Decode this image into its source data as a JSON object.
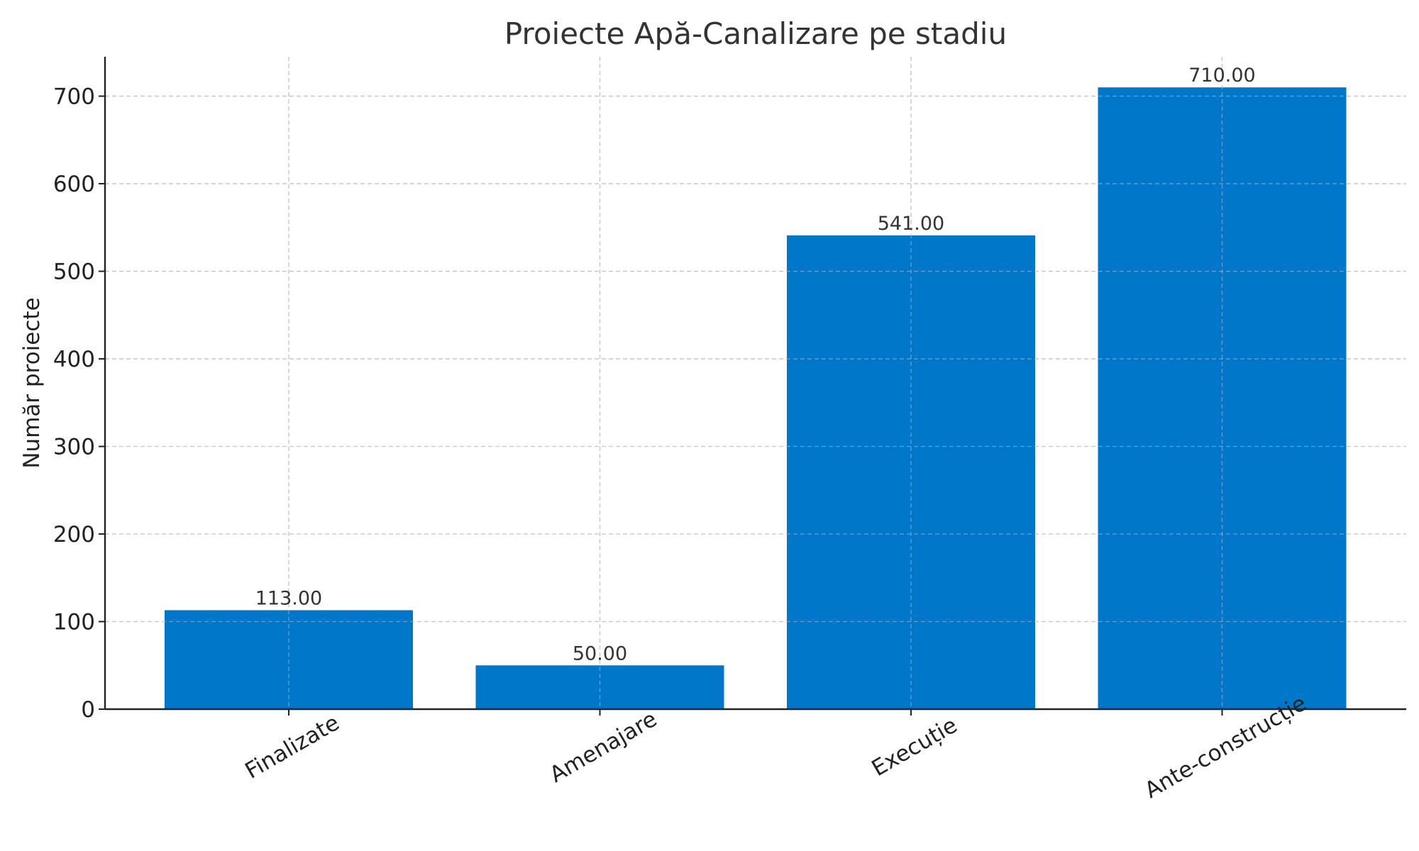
{
  "chart_data": {
    "type": "bar",
    "title": "Proiecte Apă-Canalizare pe stadiu",
    "xlabel": "",
    "ylabel": "Număr proiecte",
    "categories": [
      "Finalizate",
      "Amenajare",
      "Execuție",
      "Ante-construcție"
    ],
    "values": [
      113,
      50,
      541,
      710
    ],
    "value_labels": [
      "113.00",
      "50.00",
      "541.00",
      "710.00"
    ],
    "ylim": [
      0,
      745
    ],
    "yticks": [
      0,
      100,
      200,
      300,
      400,
      500,
      600,
      700
    ],
    "bar_color": "#0077c8",
    "grid": true,
    "legend": "none"
  }
}
